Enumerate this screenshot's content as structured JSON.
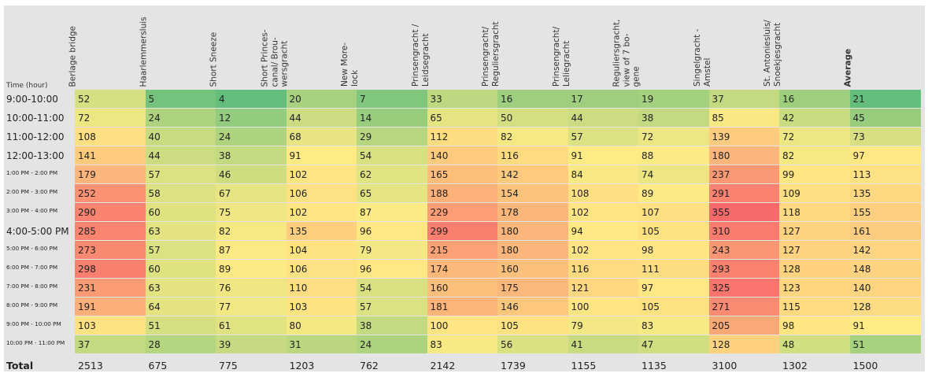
{
  "chart_data": {
    "type": "heatmap",
    "row_header": "Time (hour)",
    "columns": [
      "Berlage bridge",
      "Haarlemmersluis",
      "Short Sneeze",
      "Short Princes-\ncanal/ Brou-\nwersgracht",
      "New More-\nlock",
      "Prinsengracht /\nLeidsegracht",
      "Prinsengracht/\nReguliersgracht",
      "Prinsengracht/\nLeliegracht",
      "Reguliersgracht,\nview of 7 bo-\ngene",
      "Singelgracht -\nAmstel",
      "St. Antoniesluis/\nSnoekjesgracht",
      "Average"
    ],
    "rows": [
      "9:00-10:00",
      "10:00-11:00",
      "11:00-12:00",
      "12:00-13:00",
      "1:00 PM - 2:00 PM",
      "2:00 PM - 3:00 PM",
      "3:00 PM - 4:00 PM",
      "4:00-5:00 PM",
      "5:00 PM - 6:00 PM",
      "6:00 PM - 7:00 PM",
      "7:00 PM - 8:00 PM",
      "8:00 PM - 9:00 PM",
      "9:00 PM - 10:00 PM",
      "10:00 PM - 11:00 PM"
    ],
    "values": [
      [
        52,
        5,
        4,
        20,
        7,
        33,
        16,
        17,
        19,
        37,
        16,
        21
      ],
      [
        72,
        24,
        12,
        44,
        14,
        65,
        50,
        44,
        38,
        85,
        42,
        45
      ],
      [
        108,
        40,
        24,
        68,
        29,
        112,
        82,
        57,
        72,
        139,
        72,
        73
      ],
      [
        141,
        44,
        38,
        91,
        54,
        140,
        116,
        91,
        88,
        180,
        82,
        97
      ],
      [
        179,
        57,
        46,
        102,
        62,
        165,
        142,
        84,
        74,
        237,
        99,
        113
      ],
      [
        252,
        58,
        67,
        106,
        65,
        188,
        154,
        108,
        89,
        291,
        109,
        135
      ],
      [
        290,
        60,
        75,
        102,
        87,
        229,
        178,
        102,
        107,
        355,
        118,
        155
      ],
      [
        285,
        63,
        82,
        135,
        96,
        299,
        180,
        94,
        105,
        310,
        127,
        161
      ],
      [
        273,
        57,
        87,
        104,
        79,
        215,
        180,
        102,
        98,
        243,
        127,
        142
      ],
      [
        298,
        60,
        89,
        106,
        96,
        174,
        160,
        116,
        111,
        293,
        128,
        148
      ],
      [
        231,
        63,
        76,
        110,
        54,
        160,
        175,
        121,
        97,
        325,
        123,
        140
      ],
      [
        191,
        64,
        77,
        103,
        57,
        181,
        146,
        100,
        105,
        271,
        115,
        128
      ],
      [
        103,
        51,
        61,
        80,
        38,
        100,
        105,
        79,
        83,
        205,
        98,
        91
      ],
      [
        37,
        28,
        39,
        31,
        24,
        83,
        56,
        41,
        47,
        128,
        48,
        51
      ]
    ],
    "totals_label": "Total",
    "totals": [
      2513,
      675,
      775,
      1203,
      762,
      2142,
      1739,
      1155,
      1135,
      3100,
      1302,
      1500
    ],
    "colors": {
      "low": "#63be7b",
      "mid": "#ffeb84",
      "high": "#f8696b"
    }
  }
}
